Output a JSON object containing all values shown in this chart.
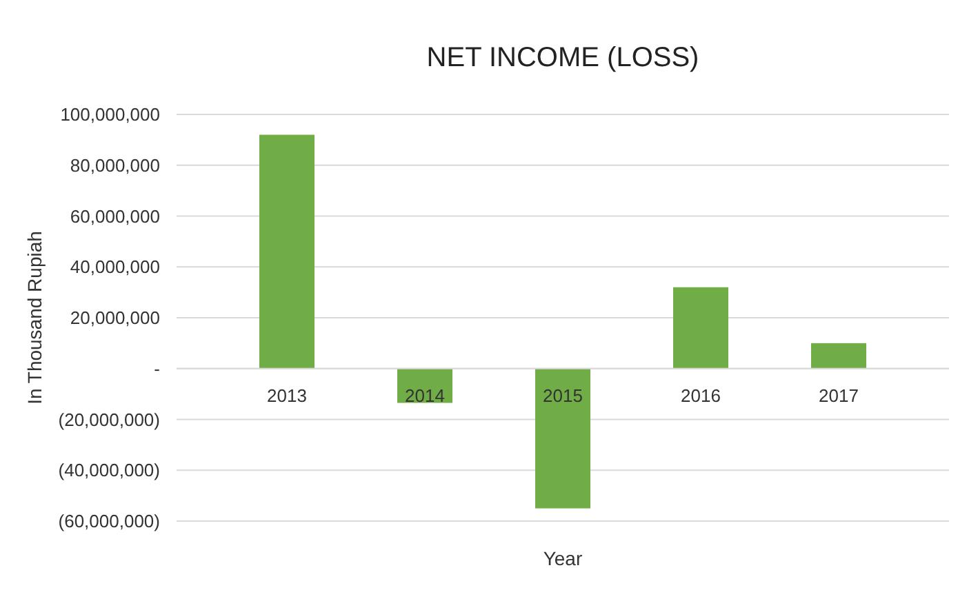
{
  "chart_data": {
    "type": "bar",
    "title": "NET INCOME (LOSS)",
    "xlabel": "Year",
    "ylabel": "In Thousand Rupiah",
    "categories": [
      "2013",
      "2014",
      "2015",
      "2016",
      "2017"
    ],
    "values": [
      92000000,
      -13500000,
      -55000000,
      32000000,
      10000000
    ],
    "color": "#70ad47",
    "ylim": [
      -60000000,
      100000000
    ],
    "yticks": [
      {
        "value": -60000000,
        "label": "(60,000,000)"
      },
      {
        "value": -40000000,
        "label": "(40,000,000)"
      },
      {
        "value": -20000000,
        "label": "(20,000,000)"
      },
      {
        "value": 0,
        "label": "-"
      },
      {
        "value": 20000000,
        "label": "20,000,000"
      },
      {
        "value": 40000000,
        "label": "40,000,000"
      },
      {
        "value": 60000000,
        "label": "60,000,000"
      },
      {
        "value": 80000000,
        "label": "80,000,000"
      },
      {
        "value": 100000000,
        "label": "100,000,000"
      }
    ],
    "grid": "y"
  }
}
